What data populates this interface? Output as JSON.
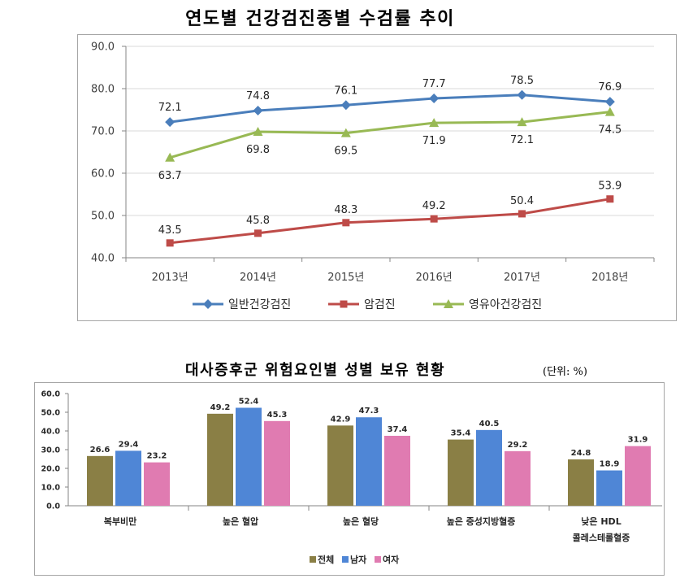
{
  "chart_data": [
    {
      "type": "line",
      "title": "연도별 건강검진종별 수검률 추이",
      "categories": [
        "2013년",
        "2014년",
        "2015년",
        "2016년",
        "2017년",
        "2018년"
      ],
      "series": [
        {
          "name": "일반건강검진",
          "values": [
            72.1,
            74.8,
            76.1,
            77.7,
            78.5,
            76.9
          ],
          "color": "#4a7ebb",
          "marker": "diamond-marker"
        },
        {
          "name": "암검진",
          "values": [
            43.5,
            45.8,
            48.3,
            49.2,
            50.4,
            53.9
          ],
          "color": "#be4b48",
          "marker": "square-marker"
        },
        {
          "name": "영유아건강검진",
          "values": [
            63.7,
            69.8,
            69.5,
            71.9,
            72.1,
            74.5
          ],
          "color": "#98b954",
          "marker": "triangle-marker"
        }
      ],
      "ylim": [
        40,
        90
      ],
      "yticks": [
        "90.0",
        "80.0",
        "70.0",
        "60.0",
        "50.0",
        "40.0"
      ],
      "grid": true,
      "legend_position": "bottom"
    },
    {
      "type": "bar",
      "title": "대사증후군 위험요인별 성별 보유 현황",
      "unit": "(단위: %)",
      "categories": [
        [
          "복부비만"
        ],
        [
          "높은 혈압"
        ],
        [
          "높은 혈당"
        ],
        [
          "높은 중성지방혈증"
        ],
        [
          "낮은 HDL",
          "콜레스테롤혈증"
        ]
      ],
      "series": [
        {
          "name": "전체",
          "values": [
            26.6,
            49.2,
            42.9,
            35.4,
            24.8
          ],
          "color": "#8a7f45"
        },
        {
          "name": "남자",
          "values": [
            29.4,
            52.4,
            47.3,
            40.5,
            18.9
          ],
          "color": "#4f86d6"
        },
        {
          "name": "여자",
          "values": [
            23.2,
            45.3,
            37.4,
            29.2,
            31.9
          ],
          "color": "#e07bb1"
        }
      ],
      "ylim": [
        0,
        60
      ],
      "yticks": [
        "60.0",
        "50.0",
        "40.0",
        "30.0",
        "20.0",
        "10.0",
        "0.0"
      ],
      "grid": false,
      "legend_position": "bottom"
    }
  ]
}
